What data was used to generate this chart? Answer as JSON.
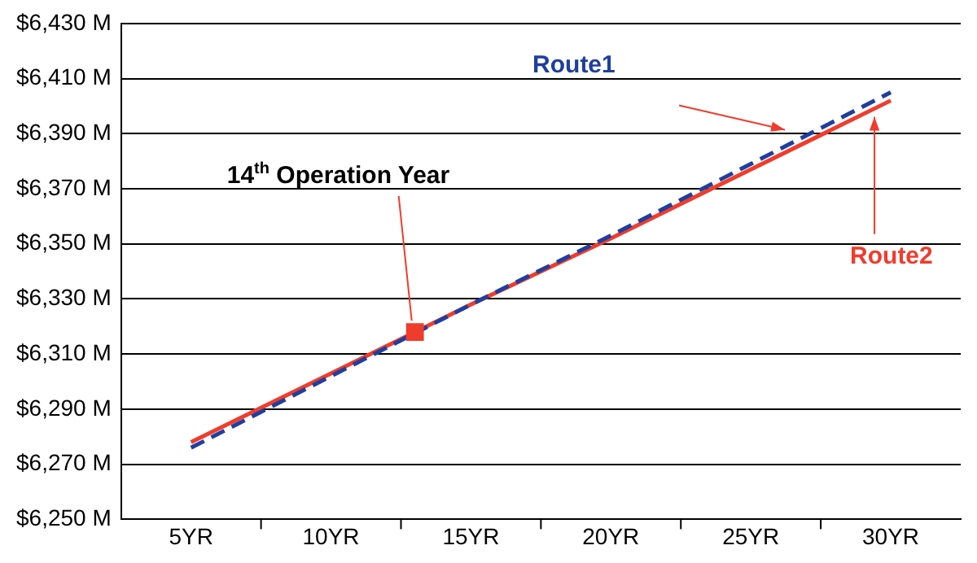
{
  "chart_data": {
    "type": "line",
    "x": [
      5,
      10,
      15,
      20,
      25,
      30
    ],
    "xlim": [
      2.5,
      32.5
    ],
    "xticks": [
      {
        "value": 5,
        "label": "5YR"
      },
      {
        "value": 10,
        "label": "10YR"
      },
      {
        "value": 15,
        "label": "15YR"
      },
      {
        "value": 20,
        "label": "20YR"
      },
      {
        "value": 25,
        "label": "25YR"
      },
      {
        "value": 30,
        "label": "30YR"
      }
    ],
    "ylim": [
      6250,
      6430
    ],
    "yticks": [
      {
        "value": 6250,
        "label": "$6,250 M"
      },
      {
        "value": 6270,
        "label": "$6,270 M"
      },
      {
        "value": 6290,
        "label": "$6,290 M"
      },
      {
        "value": 6310,
        "label": "$6,310 M"
      },
      {
        "value": 6330,
        "label": "$6,330 M"
      },
      {
        "value": 6350,
        "label": "$6,350 M"
      },
      {
        "value": 6370,
        "label": "$6,370 M"
      },
      {
        "value": 6390,
        "label": "$6,390 M"
      },
      {
        "value": 6410,
        "label": "$6,410 M"
      },
      {
        "value": 6430,
        "label": "$6,430 M"
      }
    ],
    "grid": "y",
    "legend": false,
    "series": [
      {
        "name": "Route1",
        "color": "#1f3f9f",
        "line_style": "dashed",
        "marker": "none",
        "values": [
          6276,
          6302,
          6328,
          6353,
          6379,
          6405
        ]
      },
      {
        "name": "Route2",
        "color": "#f03c2c",
        "line_style": "solid",
        "marker": "none",
        "values": [
          6278,
          6303,
          6328,
          6352,
          6377,
          6402
        ]
      },
      {
        "type": "scatter",
        "color": "#f03c2c",
        "marker": "square",
        "x": [
          13
        ],
        "values": [
          6318
        ]
      }
    ],
    "annotations": [
      {
        "text": "14$^{th}$ Operation Year",
        "x": 13,
        "y": 6318
      }
    ]
  }
}
